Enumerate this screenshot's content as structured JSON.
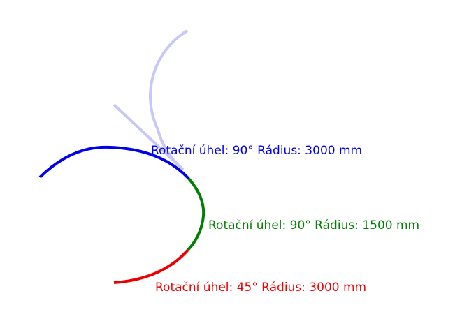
{
  "segments": [
    {
      "label": "Rotační úhel: 90° Rádius: 3000 mm",
      "color": "#0000ee",
      "rotation_angle_deg": 90,
      "radius_mm": 3000
    },
    {
      "label": "Rotační úhel: 90° Rádius: 1500 mm",
      "color": "#008000",
      "rotation_angle_deg": 90,
      "radius_mm": 1500
    },
    {
      "label": "Rotační úhel: 45° Rádius: 3000 mm",
      "color": "#ee0000",
      "rotation_angle_deg": 45,
      "radius_mm": 3000
    }
  ],
  "ghost_color": "#c8c8f8"
}
